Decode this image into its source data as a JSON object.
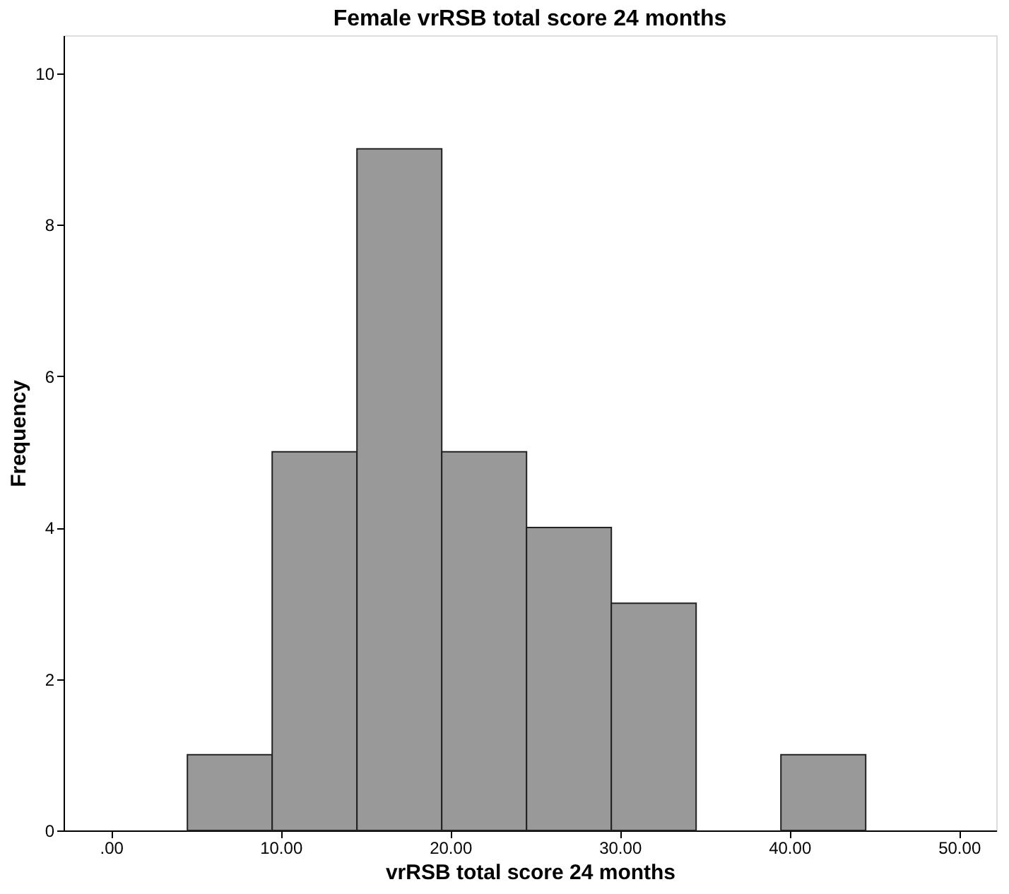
{
  "chart_data": {
    "type": "histogram",
    "title": "Female vrRSB total score 24 months",
    "xlabel": "vrRSB total score 24 months",
    "ylabel": "Frequency",
    "bins": [
      4.5,
      9.5,
      14.5,
      19.5,
      24.5,
      29.5,
      34.5,
      39.5,
      44.5
    ],
    "values": [
      1,
      5,
      9,
      5,
      4,
      3,
      0,
      1
    ],
    "color": "#999999",
    "xlim": [
      -2.8,
      52.2
    ],
    "ylim": [
      0,
      10.5
    ],
    "xticks": [
      {
        "value": 0,
        "label": ".00"
      },
      {
        "value": 10,
        "label": "10.00"
      },
      {
        "value": 20,
        "label": "20.00"
      },
      {
        "value": 30,
        "label": "30.00"
      },
      {
        "value": 40,
        "label": "40.00"
      },
      {
        "value": 50,
        "label": "50.00"
      }
    ],
    "yticks": [
      0,
      2,
      4,
      6,
      8,
      10
    ],
    "grid": false
  }
}
